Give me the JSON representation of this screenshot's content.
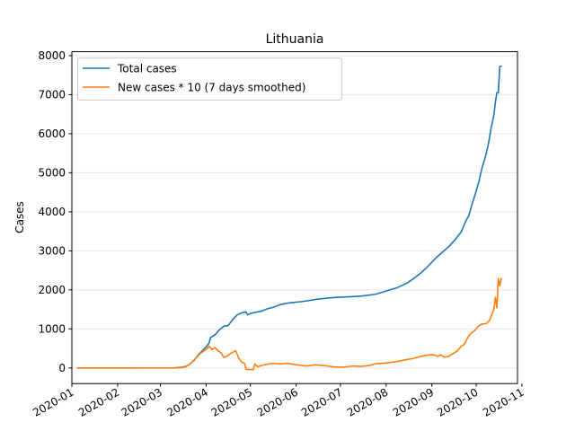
{
  "chart_data": {
    "type": "line",
    "title": "Lithuania",
    "xlabel": "",
    "ylabel": "Cases",
    "xlim": [
      "2020-01-01",
      "2020-10-29"
    ],
    "ylim": [
      -400,
      8100
    ],
    "x_ticks": [
      "2020-01",
      "2020-02",
      "2020-03",
      "2020-04",
      "2020-05",
      "2020-06",
      "2020-07",
      "2020-08",
      "2020-09",
      "2020-10",
      "2020-11"
    ],
    "y_ticks": [
      0,
      1000,
      2000,
      3000,
      4000,
      5000,
      6000,
      7000,
      8000
    ],
    "grid": "horizontal",
    "legend_position": "top-left",
    "series": [
      {
        "name": "Total cases",
        "color": "#1f77b4",
        "points": [
          [
            "2020-01-05",
            0
          ],
          [
            "2020-02-01",
            0
          ],
          [
            "2020-02-28",
            1
          ],
          [
            "2020-03-10",
            3
          ],
          [
            "2020-03-15",
            10
          ],
          [
            "2020-03-18",
            30
          ],
          [
            "2020-03-21",
            100
          ],
          [
            "2020-03-24",
            200
          ],
          [
            "2020-03-27",
            350
          ],
          [
            "2020-03-30",
            460
          ],
          [
            "2020-04-01",
            540
          ],
          [
            "2020-04-03",
            640
          ],
          [
            "2020-04-04",
            780
          ],
          [
            "2020-04-07",
            850
          ],
          [
            "2020-04-10",
            980
          ],
          [
            "2020-04-13",
            1070
          ],
          [
            "2020-04-16",
            1090
          ],
          [
            "2020-04-19",
            1240
          ],
          [
            "2020-04-22",
            1360
          ],
          [
            "2020-04-25",
            1410
          ],
          [
            "2020-04-28",
            1440
          ],
          [
            "2020-04-29",
            1360
          ],
          [
            "2020-05-01",
            1400
          ],
          [
            "2020-05-05",
            1430
          ],
          [
            "2020-05-09",
            1460
          ],
          [
            "2020-05-12",
            1510
          ],
          [
            "2020-05-17",
            1560
          ],
          [
            "2020-05-22",
            1630
          ],
          [
            "2020-05-28",
            1670
          ],
          [
            "2020-06-05",
            1700
          ],
          [
            "2020-06-15",
            1760
          ],
          [
            "2020-06-25",
            1800
          ],
          [
            "2020-07-05",
            1820
          ],
          [
            "2020-07-15",
            1840
          ],
          [
            "2020-07-25",
            1890
          ],
          [
            "2020-08-01",
            1970
          ],
          [
            "2020-08-08",
            2050
          ],
          [
            "2020-08-15",
            2170
          ],
          [
            "2020-08-20",
            2300
          ],
          [
            "2020-08-25",
            2450
          ],
          [
            "2020-08-30",
            2630
          ],
          [
            "2020-09-04",
            2830
          ],
          [
            "2020-09-08",
            2960
          ],
          [
            "2020-09-13",
            3130
          ],
          [
            "2020-09-17",
            3300
          ],
          [
            "2020-09-21",
            3490
          ],
          [
            "2020-09-24",
            3770
          ],
          [
            "2020-09-26",
            3900
          ],
          [
            "2020-09-28",
            4170
          ],
          [
            "2020-10-01",
            4530
          ],
          [
            "2020-10-03",
            4800
          ],
          [
            "2020-10-05",
            5130
          ],
          [
            "2020-10-07",
            5380
          ],
          [
            "2020-10-09",
            5680
          ],
          [
            "2020-10-11",
            6120
          ],
          [
            "2020-10-13",
            6480
          ],
          [
            "2020-10-14",
            6800
          ],
          [
            "2020-10-15",
            7050
          ],
          [
            "2020-10-16",
            7050
          ],
          [
            "2020-10-17",
            7720
          ],
          [
            "2020-10-18",
            7730
          ]
        ]
      },
      {
        "name": "New cases * 10 (7 days smoothed)",
        "color": "#ff7f0e",
        "points": [
          [
            "2020-01-05",
            0
          ],
          [
            "2020-02-01",
            0
          ],
          [
            "2020-02-28",
            0
          ],
          [
            "2020-03-10",
            0
          ],
          [
            "2020-03-15",
            20
          ],
          [
            "2020-03-18",
            40
          ],
          [
            "2020-03-20",
            70
          ],
          [
            "2020-03-22",
            130
          ],
          [
            "2020-03-25",
            250
          ],
          [
            "2020-03-28",
            370
          ],
          [
            "2020-03-31",
            450
          ],
          [
            "2020-04-02",
            510
          ],
          [
            "2020-04-03",
            560
          ],
          [
            "2020-04-05",
            470
          ],
          [
            "2020-04-07",
            520
          ],
          [
            "2020-04-09",
            440
          ],
          [
            "2020-04-11",
            390
          ],
          [
            "2020-04-13",
            270
          ],
          [
            "2020-04-15",
            300
          ],
          [
            "2020-04-18",
            380
          ],
          [
            "2020-04-21",
            440
          ],
          [
            "2020-04-23",
            260
          ],
          [
            "2020-04-25",
            150
          ],
          [
            "2020-04-27",
            120
          ],
          [
            "2020-04-28",
            -30
          ],
          [
            "2020-04-30",
            -40
          ],
          [
            "2020-05-03",
            -40
          ],
          [
            "2020-05-04",
            100
          ],
          [
            "2020-05-06",
            30
          ],
          [
            "2020-05-09",
            70
          ],
          [
            "2020-05-13",
            100
          ],
          [
            "2020-05-17",
            120
          ],
          [
            "2020-05-21",
            100
          ],
          [
            "2020-05-26",
            120
          ],
          [
            "2020-06-01",
            80
          ],
          [
            "2020-06-08",
            50
          ],
          [
            "2020-06-14",
            80
          ],
          [
            "2020-06-20",
            60
          ],
          [
            "2020-06-26",
            30
          ],
          [
            "2020-07-01",
            20
          ],
          [
            "2020-07-05",
            30
          ],
          [
            "2020-07-10",
            50
          ],
          [
            "2020-07-15",
            40
          ],
          [
            "2020-07-20",
            60
          ],
          [
            "2020-07-25",
            110
          ],
          [
            "2020-07-30",
            120
          ],
          [
            "2020-08-04",
            140
          ],
          [
            "2020-08-09",
            170
          ],
          [
            "2020-08-14",
            210
          ],
          [
            "2020-08-19",
            240
          ],
          [
            "2020-08-24",
            290
          ],
          [
            "2020-08-29",
            330
          ],
          [
            "2020-09-02",
            340
          ],
          [
            "2020-09-05",
            300
          ],
          [
            "2020-09-07",
            340
          ],
          [
            "2020-09-09",
            280
          ],
          [
            "2020-09-12",
            290
          ],
          [
            "2020-09-15",
            360
          ],
          [
            "2020-09-18",
            430
          ],
          [
            "2020-09-21",
            560
          ],
          [
            "2020-09-23",
            610
          ],
          [
            "2020-09-25",
            760
          ],
          [
            "2020-09-27",
            870
          ],
          [
            "2020-09-30",
            960
          ],
          [
            "2020-10-02",
            1050
          ],
          [
            "2020-10-04",
            1110
          ],
          [
            "2020-10-06",
            1130
          ],
          [
            "2020-10-08",
            1140
          ],
          [
            "2020-10-10",
            1220
          ],
          [
            "2020-10-12",
            1400
          ],
          [
            "2020-10-13",
            1510
          ],
          [
            "2020-10-14",
            1810
          ],
          [
            "2020-10-15",
            1540
          ],
          [
            "2020-10-16",
            2290
          ],
          [
            "2020-10-17",
            2110
          ],
          [
            "2020-10-18",
            2290
          ]
        ]
      }
    ]
  }
}
